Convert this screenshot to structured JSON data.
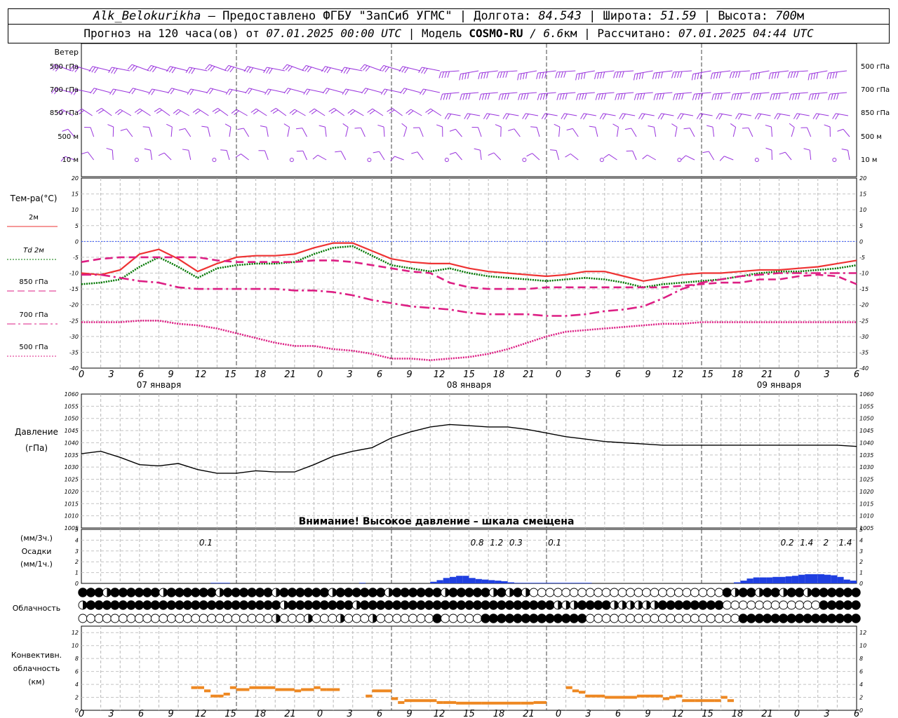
{
  "header": {
    "station": "Alk_Belokurikha",
    "provider": " – Предоставлено ФГБУ \"ЗапСиб УГМС\" | Долгота: ",
    "lon": "84.543",
    "lat_label": " | Широта: ",
    "lat": "51.59",
    "alt_label": " | Высота: ",
    "alt": "700",
    "alt_unit": "м",
    "forecast_prefix": "Прогноз на 120 часа(ов) от ",
    "forecast_from": "07.01.2025 00:00 UTC",
    "model_label": "  | Модель ",
    "model": "COSMO-RU",
    "resolution": " / 6.6",
    "res_unit": "км",
    "calc_label": " | Рассчитано: ",
    "calc_time": "07.01.2025 04:44 UTC"
  },
  "colors": {
    "t2m": "#ee3333",
    "td2m": "#007700",
    "t850": "#dd1f84",
    "t700": "#dd1f84",
    "t500": "#dd1f84",
    "wind": "#9933dd",
    "pressure": "#000000",
    "precip": "#1f3fe0",
    "convective": "#ee8822",
    "zero_line": "#3355ff"
  },
  "wind_panel": {
    "title": "Ветер",
    "levels": [
      "500 гПа",
      "700 гПа",
      "850 гПа",
      "500 м",
      "10  м"
    ]
  },
  "x_axis": {
    "ticks": [
      "0",
      "3",
      "6",
      "9",
      "12",
      "15",
      "18",
      "21",
      "0",
      "3",
      "6",
      "9",
      "12",
      "15",
      "18",
      "21",
      "0",
      "3",
      "6",
      "9",
      "12",
      "15",
      "18",
      "21",
      "0",
      "3",
      "6"
    ],
    "days": [
      "07 января",
      "08 января",
      "09 января"
    ]
  },
  "temp_panel": {
    "title": "Тем-ра(°C)",
    "legend": [
      {
        "label": "2м",
        "color": "#ee3333",
        "style": "solid"
      },
      {
        "label": "Td  2м",
        "color": "#007700",
        "style": "dotted"
      },
      {
        "label": "850 гПа",
        "color": "#dd1f84",
        "style": "dash"
      },
      {
        "label": "700 гПа",
        "color": "#dd1f84",
        "style": "dashdot"
      },
      {
        "label": "500 гПа",
        "color": "#dd1f84",
        "style": "dotted"
      }
    ],
    "yticks": [
      "20",
      "15",
      "10",
      "5",
      "0",
      "-5",
      "-10",
      "-15",
      "-20",
      "-25",
      "-30",
      "-35",
      "-40"
    ]
  },
  "pressure_panel": {
    "title": "Давление",
    "unit": "(гПа)",
    "yticks": [
      "1060",
      "1055",
      "1050",
      "1045",
      "1040",
      "1035",
      "1030",
      "1025",
      "1020",
      "1015",
      "1010",
      "1005"
    ],
    "warning": "Внимание! Высокое давление – шкала смещена"
  },
  "precip_panel": {
    "label3h": "(мм/3ч.)",
    "title": "Осадки",
    "label1h": "(мм/1ч.)",
    "yticks": [
      "5",
      "4",
      "3",
      "2",
      "1",
      "0"
    ],
    "totals": [
      {
        "hour": 21,
        "text": "0.1"
      },
      {
        "hour": 63,
        "text": "0.8"
      },
      {
        "hour": 66,
        "text": "1.2"
      },
      {
        "hour": 69,
        "text": "0.3"
      },
      {
        "hour": 75,
        "text": "0.1"
      },
      {
        "hour": 111,
        "text": "0.2"
      },
      {
        "hour": 114,
        "text": "1.4"
      },
      {
        "hour": 117,
        "text": "2"
      },
      {
        "hour": 120,
        "text": "1.4"
      }
    ]
  },
  "cloud_panel": {
    "title": "Облачность"
  },
  "conv_panel": {
    "title1": "Конвективн.",
    "title2": "облачность",
    "title3": "(км)",
    "yticks": [
      "12",
      "10",
      "8",
      "6",
      "4",
      "2",
      "0"
    ]
  },
  "chart_data": [
    {
      "type": "line",
      "name": "temperature",
      "x_hours": [
        0,
        3,
        6,
        9,
        12,
        15,
        18,
        21,
        24,
        27,
        30,
        33,
        36,
        39,
        42,
        45,
        48,
        51,
        54,
        57,
        60,
        63,
        66,
        69,
        72,
        75,
        78,
        81,
        84,
        87,
        90,
        93,
        96,
        99,
        102,
        105,
        108,
        111,
        114,
        117,
        120
      ],
      "ylim": [
        -40,
        20
      ],
      "series": [
        {
          "name": "2м",
          "values": [
            -10,
            -10.5,
            -9,
            -4,
            -2.5,
            -5.5,
            -9.5,
            -7,
            -5,
            -4.5,
            -4.5,
            -4,
            -2,
            -0.5,
            -0.5,
            -3,
            -5.5,
            -6.5,
            -7,
            -7,
            -8.5,
            -9.5,
            -10,
            -10.5,
            -11,
            -10.5,
            -9.5,
            -9.5,
            -11,
            -12.5,
            -11.5,
            -10.5,
            -10,
            -10,
            -9.5,
            -9,
            -9,
            -8.5,
            -8,
            -7,
            -6
          ]
        },
        {
          "name": "Td  2м",
          "values": [
            -13.5,
            -13,
            -12,
            -8,
            -5,
            -8,
            -11.5,
            -8.5,
            -7.5,
            -7,
            -7,
            -6.5,
            -4,
            -2,
            -1.5,
            -4.5,
            -7.5,
            -8.5,
            -9.5,
            -8.5,
            -10,
            -11,
            -11.5,
            -12,
            -12.5,
            -12,
            -11.5,
            -12,
            -13,
            -14.5,
            -13.5,
            -13,
            -12.5,
            -12,
            -11,
            -10,
            -9.5,
            -9.5,
            -9,
            -8.5,
            -7.5
          ]
        },
        {
          "name": "850 гПа",
          "values": [
            -6.5,
            -5.5,
            -5,
            -5,
            -5,
            -5,
            -5,
            -6,
            -6.5,
            -6.5,
            -6.5,
            -6.5,
            -6,
            -6,
            -6.5,
            -7.5,
            -8.5,
            -9.5,
            -10,
            -13,
            -14.5,
            -15,
            -15,
            -15,
            -14.5,
            -14.5,
            -14.5,
            -14.5,
            -14.5,
            -14.5,
            -14.5,
            -14,
            -13.5,
            -13,
            -13,
            -12,
            -12,
            -11,
            -10.5,
            -11,
            -13.5
          ]
        },
        {
          "name": "700 гПа",
          "values": [
            -10.5,
            -10.5,
            -11.5,
            -12.5,
            -13,
            -14.5,
            -15,
            -15,
            -15,
            -15,
            -15,
            -15.5,
            -15.5,
            -16,
            -17,
            -18.5,
            -19.5,
            -20.5,
            -21,
            -21.5,
            -22.5,
            -23,
            -23,
            -23,
            -23.5,
            -23.5,
            -23,
            -22,
            -21.5,
            -20.5,
            -18,
            -15,
            -13,
            -12,
            -11,
            -10.5,
            -10,
            -10,
            -10,
            -10,
            -10
          ]
        },
        {
          "name": "500 гПа",
          "values": [
            -25.5,
            -25.5,
            -25.5,
            -25,
            -25,
            -26,
            -26.5,
            -27.5,
            -29,
            -30.5,
            -32,
            -33,
            -33,
            -34,
            -34.5,
            -35.5,
            -37,
            -37,
            -37.5,
            -37,
            -36.5,
            -35.5,
            -34,
            -32,
            -30,
            -28.5,
            -28,
            -27.5,
            -27,
            -26.5,
            -26,
            -26,
            -25.5,
            -25.5,
            -25.5,
            -25.5,
            -25.5,
            -25.5,
            -25.5,
            -25.5,
            -25.5
          ]
        }
      ]
    },
    {
      "type": "line",
      "name": "pressure",
      "x_hours": [
        0,
        3,
        6,
        9,
        12,
        15,
        18,
        21,
        24,
        27,
        30,
        33,
        36,
        39,
        42,
        45,
        48,
        51,
        54,
        57,
        60,
        63,
        66,
        69,
        72,
        75,
        78,
        81,
        84,
        87,
        90,
        93,
        96,
        99,
        102,
        105,
        108,
        111,
        114,
        117,
        120
      ],
      "ylim": [
        1005,
        1060
      ],
      "values": [
        1035.5,
        1036.5,
        1034,
        1031,
        1030.5,
        1031.5,
        1029,
        1027.5,
        1027.5,
        1028.5,
        1028,
        1028,
        1031,
        1034.5,
        1036.5,
        1038,
        1042,
        1044.5,
        1046.5,
        1047.5,
        1047,
        1046.5,
        1046.5,
        1045.5,
        1044,
        1042.5,
        1041.5,
        1040.5,
        1040,
        1039.5,
        1039,
        1039,
        1039,
        1039,
        1039,
        1039,
        1039,
        1039,
        1039,
        1039,
        1038.5
      ]
    },
    {
      "type": "bar",
      "name": "precipitation_mm_per_hour",
      "x_hours": [
        21,
        22,
        23,
        44,
        55,
        56,
        57,
        58,
        59,
        60,
        61,
        62,
        63,
        64,
        65,
        66,
        67,
        68,
        69,
        70,
        71,
        72,
        73,
        74,
        75,
        76,
        77,
        78,
        79,
        102,
        103,
        104,
        105,
        106,
        107,
        108,
        109,
        110,
        111,
        112,
        113,
        114,
        115,
        116,
        117,
        118,
        119,
        120
      ],
      "values": [
        0.05,
        0.05,
        0.05,
        0.05,
        0.15,
        0.3,
        0.5,
        0.6,
        0.7,
        0.7,
        0.5,
        0.4,
        0.35,
        0.3,
        0.25,
        0.2,
        0.1,
        0.05,
        0.05,
        0.05,
        0.05,
        0.05,
        0.05,
        0.05,
        0.05,
        0.05,
        0.05,
        0.05,
        0.05,
        0.1,
        0.25,
        0.45,
        0.55,
        0.55,
        0.55,
        0.6,
        0.6,
        0.65,
        0.7,
        0.8,
        0.85,
        0.85,
        0.85,
        0.8,
        0.75,
        0.6,
        0.35,
        0.25
      ],
      "ylim": [
        0,
        5
      ]
    },
    {
      "type": "bar",
      "name": "convective_cloud_top_km",
      "segments": [
        [
          17,
          18,
          3.5
        ],
        [
          18,
          19,
          3.5
        ],
        [
          19,
          20,
          3
        ],
        [
          20,
          21,
          2.2
        ],
        [
          21,
          22,
          2.2
        ],
        [
          22,
          23,
          2.5
        ],
        [
          23,
          24,
          3.5
        ],
        [
          24,
          26,
          3.2
        ],
        [
          26,
          30,
          3.5
        ],
        [
          30,
          33,
          3.2
        ],
        [
          33,
          34,
          3
        ],
        [
          34,
          36,
          3.2
        ],
        [
          36,
          37,
          3.5
        ],
        [
          37,
          38,
          3.2
        ],
        [
          38,
          40,
          3.2
        ],
        [
          44,
          45,
          2.2
        ],
        [
          45,
          48,
          3
        ],
        [
          48,
          49,
          1.8
        ],
        [
          49,
          50,
          1.2
        ],
        [
          50,
          53,
          1.5
        ],
        [
          53,
          55,
          1.5
        ],
        [
          55,
          56,
          1.2
        ],
        [
          56,
          58,
          1.2
        ],
        [
          58,
          62,
          1.1
        ],
        [
          62,
          68,
          1.1
        ],
        [
          68,
          70,
          1.1
        ],
        [
          70,
          72,
          1.2
        ],
        [
          75,
          76,
          3.5
        ],
        [
          76,
          77,
          3
        ],
        [
          77,
          78,
          2.8
        ],
        [
          78,
          79,
          2.2
        ],
        [
          79,
          81,
          2.2
        ],
        [
          81,
          84,
          2
        ],
        [
          84,
          86,
          2
        ],
        [
          86,
          89,
          2.2
        ],
        [
          89,
          90,
          2.2
        ],
        [
          90,
          91,
          1.8
        ],
        [
          91,
          92,
          2
        ],
        [
          92,
          93,
          2.2
        ],
        [
          93,
          95,
          1.5
        ],
        [
          95,
          98,
          1.5
        ],
        [
          98,
          99,
          1.5
        ],
        [
          99,
          100,
          2
        ],
        [
          100,
          101,
          1.5
        ]
      ],
      "ylim": [
        0,
        13
      ]
    },
    {
      "type": "table",
      "name": "cloudiness_rows",
      "rows_count": 3,
      "columns_count": 97
    }
  ]
}
